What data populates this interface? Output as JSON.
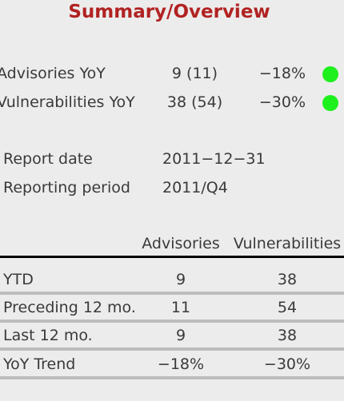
{
  "title": "Summary/Overview",
  "yoy": [
    {
      "label": "Advisories YoY",
      "count": "9 (11)",
      "pct": "−18%",
      "status_color": "#1ef01e"
    },
    {
      "label": "Vulnerabilities YoY",
      "count": "38 (54)",
      "pct": "−30%",
      "status_color": "#1ef01e"
    }
  ],
  "meta": [
    {
      "label": "Report date",
      "value": "2011−12−31"
    },
    {
      "label": "Reporting period",
      "value": "2011/Q4"
    }
  ],
  "table": {
    "columns": [
      "Advisories",
      "Vulnerabilities"
    ],
    "rows": [
      {
        "label": "YTD",
        "advisories": "9",
        "vulnerabilities": "38"
      },
      {
        "label": "Preceding 12 mo.",
        "advisories": "11",
        "vulnerabilities": "54"
      },
      {
        "label": "Last 12 mo.",
        "advisories": "9",
        "vulnerabilities": "38"
      },
      {
        "label": "YoY Trend",
        "advisories": "−18%",
        "vulnerabilities": "−30%"
      }
    ]
  },
  "colors": {
    "title": "#b22222",
    "status_ok": "#1ef01e",
    "text": "#3a3a3a",
    "background": "#ececec",
    "row_rule": "#bdbdbd",
    "header_rule": "#000000"
  }
}
